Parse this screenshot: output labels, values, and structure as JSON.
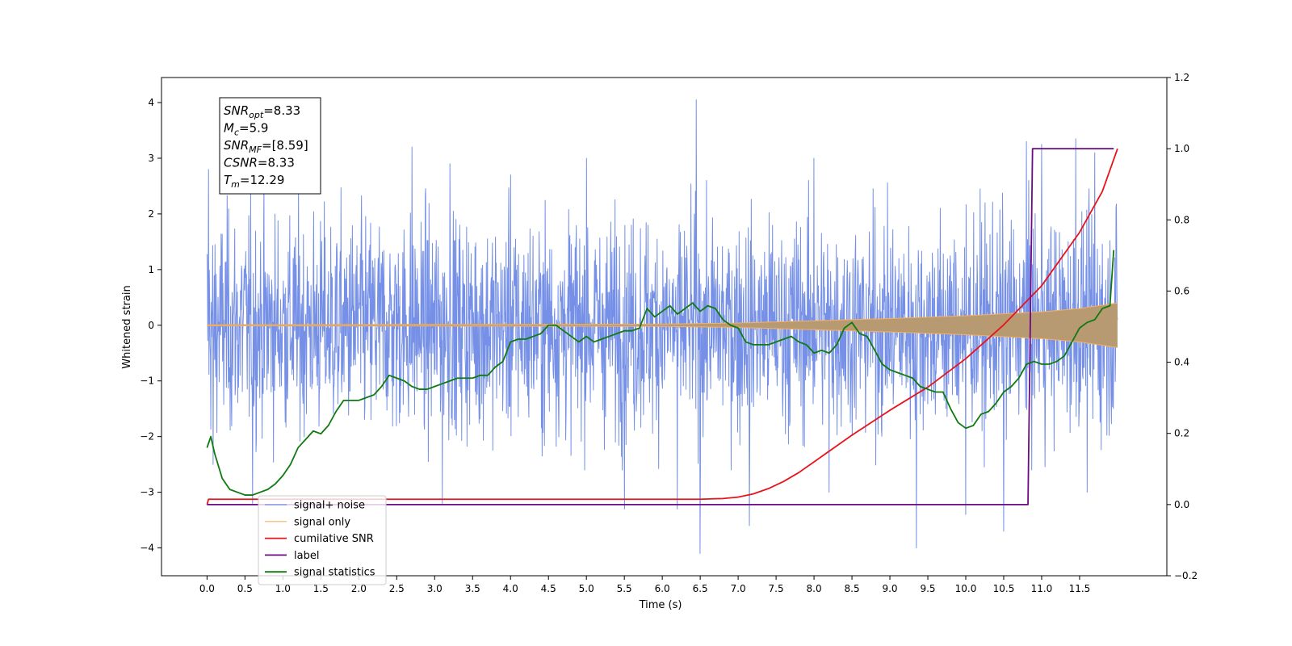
{
  "chart_data": {
    "type": "line",
    "xlabel": "Time (s)",
    "ylabel": "Whitened strain",
    "xlim": [
      -0.6,
      12.65
    ],
    "ylim": [
      -4.5,
      4.45
    ],
    "y2lim": [
      -0.2,
      1.2
    ],
    "x_ticks": [
      0.0,
      0.5,
      1.0,
      1.5,
      2.0,
      2.5,
      3.0,
      3.5,
      4.0,
      4.5,
      5.0,
      5.5,
      6.0,
      6.5,
      7.0,
      7.5,
      8.0,
      8.5,
      9.0,
      9.5,
      10.0,
      10.5,
      11.0,
      11.5
    ],
    "x_tick_labels": [
      "0.0",
      "0.5",
      "1.0",
      "1.5",
      "2.0",
      "2.5",
      "3.0",
      "3.5",
      "4.0",
      "4.5",
      "5.0",
      "5.5",
      "6.0",
      "6.5",
      "7.0",
      "7.5",
      "8.0",
      "8.5",
      "9.0",
      "9.5",
      "10.0",
      "10.5",
      "11.0",
      "11.5"
    ],
    "y_ticks": [
      -4,
      -3,
      -2,
      -1,
      0,
      1,
      2,
      3,
      4
    ],
    "y_tick_labels": [
      "−4",
      "−3",
      "−2",
      "−1",
      "0",
      "1",
      "2",
      "3",
      "4"
    ],
    "y2_ticks": [
      -0.2,
      0.0,
      0.2,
      0.4,
      0.6,
      0.8,
      1.0,
      1.2
    ],
    "y2_tick_labels": [
      "−0.2",
      "0.0",
      "0.2",
      "0.4",
      "0.6",
      "0.8",
      "1.0",
      "1.2"
    ],
    "grid": false,
    "legend_position": "lower-left",
    "annotation": [
      {
        "base": "SNR",
        "sub": "opt",
        "rest": "=8.33"
      },
      {
        "base": "M",
        "sub": "c",
        "rest": "=5.9"
      },
      {
        "base": "SNR",
        "sub": "MF",
        "rest": "=[8.59]"
      },
      {
        "base": "CSNR",
        "sub": "",
        "rest": "=8.33"
      },
      {
        "base": "T",
        "sub": "m",
        "rest": "=12.29"
      }
    ],
    "series": [
      {
        "name": "signal+ noise",
        "color": "#7590e6",
        "axis": "left",
        "style": "noise",
        "x_range": [
          0.0,
          12.0
        ],
        "typical_range": [
          -1.5,
          1.5
        ],
        "peaks": [
          {
            "x": 0.02,
            "y": 2.8
          },
          {
            "x": 0.08,
            "y": -2.5
          },
          {
            "x": 0.6,
            "y": -3.2
          },
          {
            "x": 2.7,
            "y": 3.2
          },
          {
            "x": 3.1,
            "y": -3.2
          },
          {
            "x": 3.2,
            "y": 2.9
          },
          {
            "x": 4.0,
            "y": 2.7
          },
          {
            "x": 5.0,
            "y": 3.0
          },
          {
            "x": 5.5,
            "y": -3.3
          },
          {
            "x": 6.2,
            "y": -3.3
          },
          {
            "x": 6.45,
            "y": 4.05
          },
          {
            "x": 6.5,
            "y": -4.1
          },
          {
            "x": 7.15,
            "y": -3.6
          },
          {
            "x": 8.0,
            "y": 3.0
          },
          {
            "x": 8.2,
            "y": -3.0
          },
          {
            "x": 9.35,
            "y": -4.0
          },
          {
            "x": 10.0,
            "y": -3.4
          },
          {
            "x": 10.5,
            "y": -3.7
          },
          {
            "x": 10.8,
            "y": 3.3
          },
          {
            "x": 11.0,
            "y": 3.25
          },
          {
            "x": 11.45,
            "y": 3.35
          },
          {
            "x": 11.7,
            "y": 3.1
          },
          {
            "x": 11.6,
            "y": -3.0
          }
        ]
      },
      {
        "name": "signal only",
        "color": "#f5b060",
        "axis": "left",
        "style": "chirp",
        "x_range": [
          0.0,
          12.0
        ],
        "envelope": {
          "x": [
            0.0,
            6.0,
            7.0,
            8.0,
            9.0,
            10.0,
            11.0,
            11.5,
            12.0
          ],
          "amplitude": [
            0.01,
            0.02,
            0.04,
            0.08,
            0.12,
            0.17,
            0.24,
            0.3,
            0.4
          ]
        }
      },
      {
        "name": "cumilative SNR",
        "color": "#e8141b",
        "axis": "right",
        "x": [
          0.0,
          0.02,
          1.0,
          3.0,
          5.0,
          6.0,
          6.5,
          6.8,
          7.0,
          7.2,
          7.4,
          7.6,
          7.8,
          8.0,
          8.5,
          9.0,
          9.5,
          10.0,
          10.5,
          11.0,
          11.5,
          11.8,
          12.0
        ],
        "values": [
          0.0,
          0.015,
          0.015,
          0.015,
          0.015,
          0.015,
          0.015,
          0.017,
          0.021,
          0.03,
          0.045,
          0.065,
          0.09,
          0.12,
          0.195,
          0.265,
          0.33,
          0.41,
          0.505,
          0.615,
          0.765,
          0.88,
          1.0
        ]
      },
      {
        "name": "label",
        "color": "#6d0a85",
        "axis": "right",
        "x": [
          0.0,
          10.82,
          10.88,
          11.95
        ],
        "values": [
          0.0,
          0.0,
          1.0,
          1.0
        ]
      },
      {
        "name": "signal statistics",
        "color": "#0f7a0f",
        "axis": "left",
        "x": [
          0.0,
          0.05,
          0.1,
          0.2,
          0.3,
          0.4,
          0.5,
          0.6,
          0.7,
          0.8,
          0.9,
          1.0,
          1.1,
          1.2,
          1.3,
          1.4,
          1.5,
          1.6,
          1.7,
          1.8,
          1.9,
          2.0,
          2.1,
          2.2,
          2.3,
          2.4,
          2.5,
          2.6,
          2.7,
          2.8,
          2.9,
          3.0,
          3.1,
          3.2,
          3.3,
          3.4,
          3.5,
          3.6,
          3.7,
          3.8,
          3.9,
          4.0,
          4.1,
          4.2,
          4.3,
          4.4,
          4.5,
          4.6,
          4.7,
          4.8,
          4.9,
          5.0,
          5.1,
          5.2,
          5.3,
          5.4,
          5.5,
          5.6,
          5.7,
          5.8,
          5.9,
          6.0,
          6.1,
          6.2,
          6.3,
          6.4,
          6.5,
          6.6,
          6.7,
          6.8,
          6.9,
          7.0,
          7.1,
          7.2,
          7.3,
          7.4,
          7.5,
          7.6,
          7.7,
          7.8,
          7.9,
          8.0,
          8.1,
          8.2,
          8.3,
          8.4,
          8.5,
          8.6,
          8.7,
          8.8,
          8.9,
          9.0,
          9.1,
          9.2,
          9.3,
          9.4,
          9.5,
          9.6,
          9.7,
          9.8,
          9.9,
          10.0,
          10.1,
          10.2,
          10.3,
          10.4,
          10.5,
          10.6,
          10.7,
          10.8,
          10.9,
          11.0,
          11.1,
          11.2,
          11.3,
          11.4,
          11.5,
          11.6,
          11.7,
          11.8,
          11.9,
          11.95
        ],
        "values": [
          -2.2,
          -2.0,
          -2.3,
          -2.75,
          -2.95,
          -3.0,
          -3.05,
          -3.05,
          -3.0,
          -2.95,
          -2.85,
          -2.7,
          -2.5,
          -2.2,
          -2.05,
          -1.9,
          -1.95,
          -1.8,
          -1.55,
          -1.35,
          -1.35,
          -1.35,
          -1.3,
          -1.25,
          -1.1,
          -0.9,
          -0.95,
          -1.0,
          -1.1,
          -1.15,
          -1.15,
          -1.1,
          -1.05,
          -1.0,
          -0.95,
          -0.95,
          -0.95,
          -0.9,
          -0.9,
          -0.75,
          -0.65,
          -0.3,
          -0.25,
          -0.25,
          -0.2,
          -0.15,
          0.0,
          0.0,
          -0.1,
          -0.2,
          -0.3,
          -0.2,
          -0.3,
          -0.25,
          -0.2,
          -0.15,
          -0.1,
          -0.1,
          -0.05,
          0.3,
          0.15,
          0.25,
          0.35,
          0.2,
          0.3,
          0.4,
          0.25,
          0.35,
          0.3,
          0.1,
          0.0,
          -0.05,
          -0.3,
          -0.35,
          -0.35,
          -0.35,
          -0.3,
          -0.25,
          -0.2,
          -0.3,
          -0.35,
          -0.5,
          -0.45,
          -0.5,
          -0.35,
          -0.05,
          0.05,
          -0.15,
          -0.2,
          -0.45,
          -0.7,
          -0.8,
          -0.85,
          -0.9,
          -0.95,
          -1.1,
          -1.15,
          -1.2,
          -1.2,
          -1.5,
          -1.75,
          -1.85,
          -1.8,
          -1.6,
          -1.55,
          -1.4,
          -1.2,
          -1.1,
          -0.95,
          -0.7,
          -0.65,
          -0.7,
          -0.7,
          -0.65,
          -0.55,
          -0.3,
          -0.05,
          0.05,
          0.1,
          0.3,
          0.35,
          1.35
        ]
      }
    ]
  }
}
